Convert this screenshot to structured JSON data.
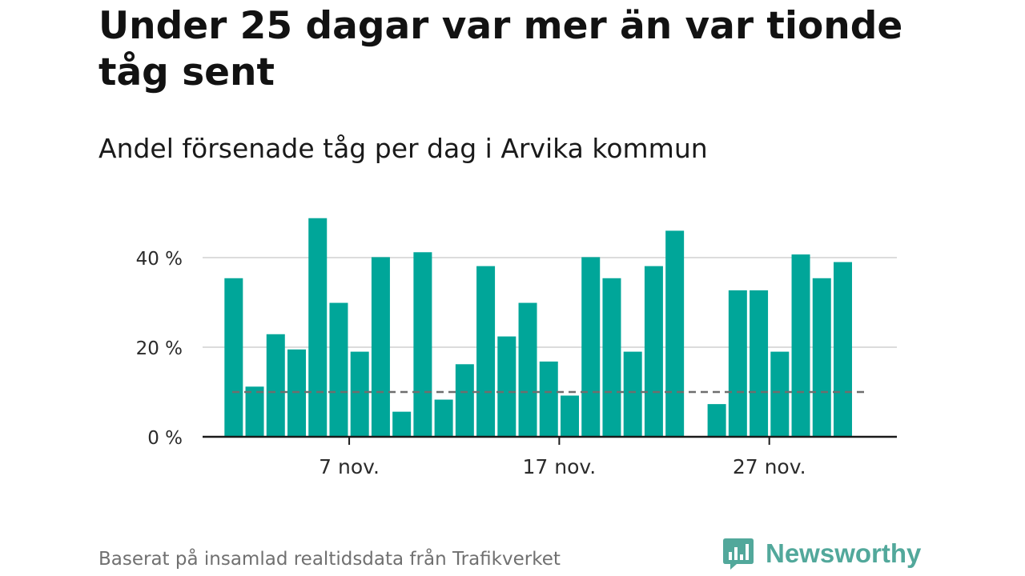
{
  "title": "Under 25 dagar var mer än var tionde tåg sent",
  "subtitle": "Andel försenade tåg per dag i Arvika kommun",
  "footer": "Baserat på insamlad realtidsdata från Trafikverket",
  "brand": {
    "name": "Newsworthy",
    "icon": "chat-bar-chart-icon",
    "color": "#52a89b"
  },
  "colors": {
    "bar": "#00a699",
    "grid": "#dcdcdc",
    "axis": "#1a1a1a",
    "reference": "#6e6e6e"
  },
  "chart_data": {
    "type": "bar",
    "title": "Under 25 dagar var mer än var tionde tåg sent",
    "subtitle": "Andel försenade tåg per dag i Arvika kommun",
    "x": [
      "2024-11-01",
      "2024-11-02",
      "2024-11-03",
      "2024-11-04",
      "2024-11-05",
      "2024-11-06",
      "2024-11-07",
      "2024-11-08",
      "2024-11-09",
      "2024-11-10",
      "2024-11-11",
      "2024-11-12",
      "2024-11-13",
      "2024-11-14",
      "2024-11-15",
      "2024-11-16",
      "2024-11-17",
      "2024-11-18",
      "2024-11-19",
      "2024-11-20",
      "2024-11-21",
      "2024-11-22",
      "2024-11-23",
      "2024-11-24",
      "2024-11-25",
      "2024-11-26",
      "2024-11-27",
      "2024-11-28",
      "2024-11-29",
      "2024-11-30"
    ],
    "values": [
      35.4,
      11.2,
      22.9,
      19.5,
      48.8,
      29.9,
      19.0,
      40.1,
      5.6,
      41.2,
      8.3,
      16.2,
      38.1,
      22.4,
      29.9,
      16.8,
      9.2,
      40.1,
      35.4,
      19.0,
      38.1,
      46.0,
      null,
      7.3,
      32.7,
      32.7,
      19.0,
      40.7,
      35.4,
      39.0
    ],
    "reference_line": 10,
    "ylim": [
      0,
      50
    ],
    "yticks": [
      0,
      20,
      40
    ],
    "ytick_labels": [
      "0 %",
      "20 %",
      "40 %"
    ],
    "xticks": [
      "2024-11-07",
      "2024-11-17",
      "2024-11-27"
    ],
    "xtick_labels": [
      "7 nov.",
      "17 nov.",
      "27 nov."
    ],
    "grid": true,
    "legend": "none"
  }
}
